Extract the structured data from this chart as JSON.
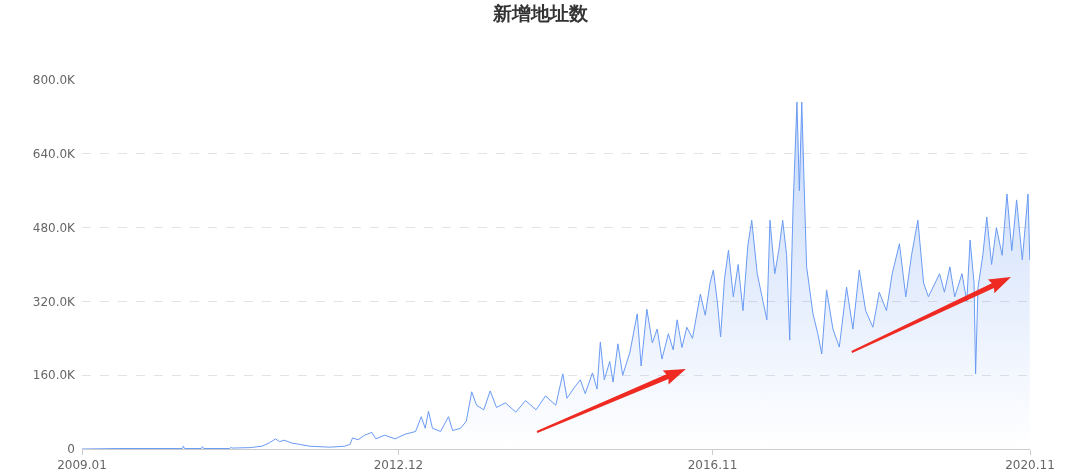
{
  "chart_data": {
    "type": "area",
    "title": "新增地址数",
    "x": [
      "2009-01-03",
      "2009-06-20",
      "2010-04-05",
      "2010-04-10",
      "2010-04-15",
      "2010-07-01",
      "2010-07-06",
      "2010-07-11",
      "2010-11-08",
      "2010-11-12",
      "2010-11-16",
      "2011-02-08",
      "2011-04-03",
      "2011-05-09",
      "2011-06-04",
      "2011-06-22",
      "2011-07-14",
      "2011-08-16",
      "2011-09-22",
      "2011-11-08",
      "2012-02-07",
      "2012-04-14",
      "2012-05-08",
      "2012-05-20",
      "2012-06-14",
      "2012-07-14",
      "2012-08-16",
      "2012-09-03",
      "2012-10-13",
      "2012-11-30",
      "2013-01-14",
      "2013-03-03",
      "2013-03-29",
      "2013-04-16",
      "2013-05-01",
      "2013-05-19",
      "2013-06-25",
      "2013-07-31",
      "2013-08-19",
      "2013-09-24",
      "2013-10-20",
      "2013-11-14",
      "2013-12-06",
      "2014-01-08",
      "2014-02-06",
      "2014-03-07",
      "2014-04-16",
      "2014-06-03",
      "2014-07-17",
      "2014-09-03",
      "2014-10-16",
      "2014-12-02",
      "2015-01-03",
      "2015-01-22",
      "2015-02-27",
      "2015-03-24",
      "2015-04-15",
      "2015-05-18",
      "2015-06-08",
      "2015-06-23",
      "2015-07-11",
      "2015-08-05",
      "2015-08-20",
      "2015-09-11",
      "2015-10-03",
      "2015-11-05",
      "2015-12-08",
      "2015-12-26",
      "2016-01-21",
      "2016-02-15",
      "2016-03-08",
      "2016-03-30",
      "2016-04-28",
      "2016-05-20",
      "2016-06-07",
      "2016-06-29",
      "2016-07-21",
      "2016-08-16",
      "2016-09-21",
      "2016-10-13",
      "2016-11-04",
      "2016-11-19",
      "2016-12-07",
      "2016-12-22",
      "2017-01-09",
      "2017-01-27",
      "2017-02-18",
      "2017-03-12",
      "2017-04-03",
      "2017-04-25",
      "2017-05-13",
      "2017-06-07",
      "2017-06-29",
      "2017-07-21",
      "2017-08-04",
      "2017-08-26",
      "2017-09-13",
      "2017-10-01",
      "2017-10-19",
      "2017-11-02",
      "2017-11-17",
      "2017-12-05",
      "2017-12-16",
      "2017-12-27",
      "2018-01-10",
      "2018-01-18",
      "2018-02-16",
      "2018-03-10",
      "2018-03-28",
      "2018-04-19",
      "2018-05-18",
      "2018-06-16",
      "2018-07-19",
      "2018-08-17",
      "2018-09-15",
      "2018-10-14",
      "2018-11-16",
      "2018-12-15",
      "2019-01-17",
      "2019-02-12",
      "2019-03-17",
      "2019-04-15",
      "2019-05-11",
      "2019-06-09",
      "2019-07-05",
      "2019-07-27",
      "2019-09-16",
      "2019-10-08",
      "2019-11-02",
      "2019-11-24",
      "2019-12-27",
      "2020-01-18",
      "2020-02-02",
      "2020-02-20",
      "2020-02-27",
      "2020-03-09",
      "2020-03-31",
      "2020-04-18",
      "2020-05-10",
      "2020-06-01",
      "2020-06-27",
      "2020-07-19",
      "2020-08-10",
      "2020-09-01",
      "2020-09-27",
      "2020-10-23",
      "2020-10-31"
    ],
    "values": [
      0,
      1000,
      1000,
      6000,
      1000,
      1000,
      5000,
      1000,
      1000,
      4000,
      2000,
      3000,
      6000,
      14000,
      22000,
      16000,
      19000,
      13000,
      10000,
      6000,
      4000,
      6000,
      10000,
      24000,
      20000,
      30000,
      36000,
      22000,
      30000,
      22000,
      32000,
      38000,
      70000,
      45000,
      82000,
      45000,
      38000,
      70000,
      40000,
      45000,
      60000,
      124000,
      95000,
      85000,
      126000,
      90000,
      100000,
      80000,
      105000,
      85000,
      115000,
      95000,
      163000,
      110000,
      135000,
      150000,
      120000,
      165000,
      130000,
      232000,
      150000,
      190000,
      145000,
      228000,
      160000,
      210000,
      293000,
      180000,
      303000,
      230000,
      260000,
      195000,
      250000,
      215000,
      280000,
      220000,
      264000,
      240000,
      336000,
      290000,
      360000,
      388000,
      320000,
      243000,
      370000,
      431000,
      330000,
      400000,
      300000,
      440000,
      496000,
      380000,
      330000,
      280000,
      496000,
      380000,
      430000,
      496000,
      420000,
      236000,
      520000,
      752000,
      560000,
      752000,
      520000,
      395000,
      293000,
      250000,
      206000,
      345000,
      260000,
      221000,
      351000,
      260000,
      388000,
      300000,
      264000,
      340000,
      300000,
      380000,
      445000,
      330000,
      420000,
      496000,
      360000,
      330000,
      380000,
      340000,
      395000,
      330000,
      380000,
      320000,
      453000,
      360000,
      163000,
      350000,
      420000,
      503000,
      400000,
      480000,
      420000,
      553000,
      430000,
      540000,
      410000,
      553000,
      410000
    ],
    "color": "#6a9bf4",
    "xlim": [
      "2009-01-03",
      "2020-11-01"
    ],
    "xticks": [
      {
        "value": "2009-01-03",
        "label": "2009.01"
      },
      {
        "value": "2012-12-15",
        "label": "2012.12"
      },
      {
        "value": "2016-11-15",
        "label": "2016.11"
      },
      {
        "value": "2020-11-01",
        "label": "2020.11"
      }
    ],
    "ylim": [
      0,
      800000
    ],
    "yticks": [
      0,
      {
        "value": 160000,
        "label": "160.0K"
      },
      {
        "value": 320000,
        "label": "320.0K"
      },
      {
        "value": 480000,
        "label": "480.0K"
      },
      {
        "value": 640000,
        "label": "640.0K"
      },
      {
        "value": 800000,
        "label": "800.0K"
      }
    ],
    "grid": "y"
  }
}
